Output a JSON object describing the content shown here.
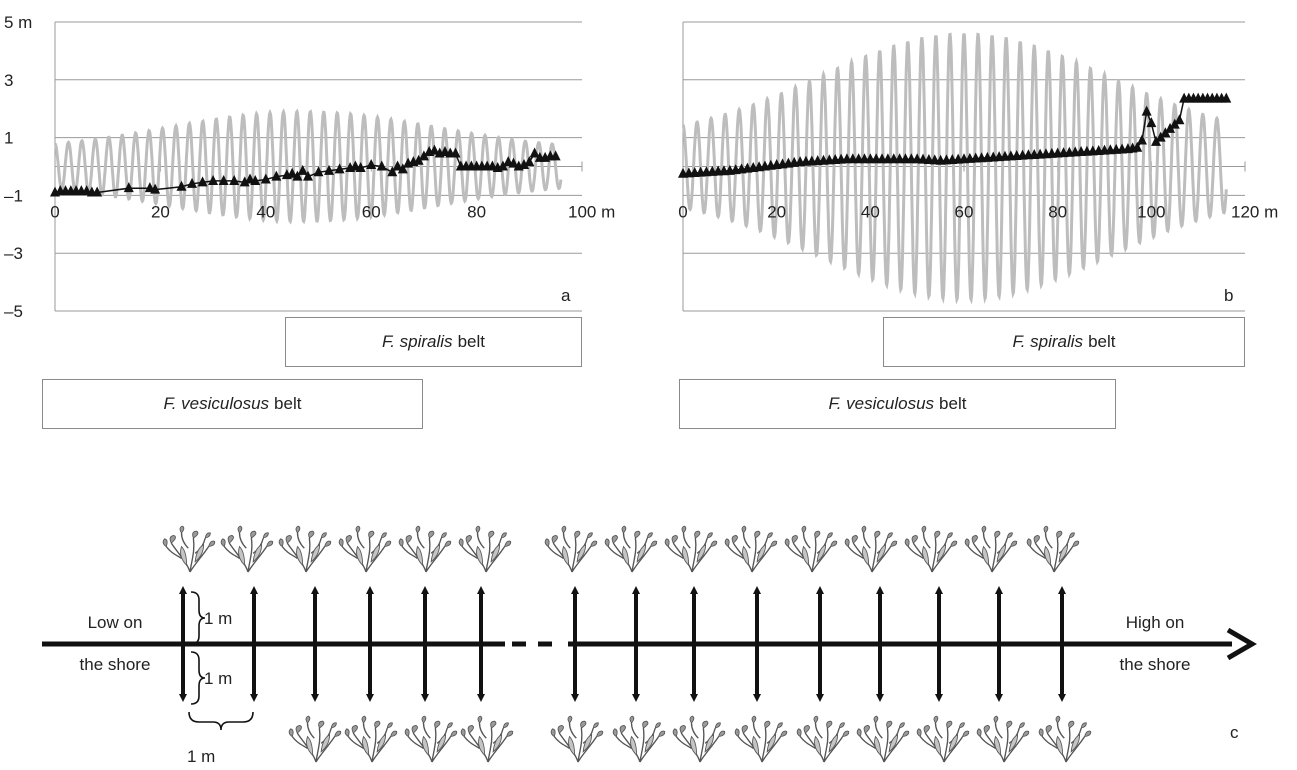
{
  "chart_data": [
    {
      "type": "line",
      "panel_label": "a",
      "y_tick_labels": [
        "5 m",
        "3",
        "1",
        "–1",
        "–3",
        "–5"
      ],
      "y_ticks": [
        5,
        3,
        1,
        -1,
        -3,
        -5
      ],
      "x_tick_labels": [
        "0",
        "20",
        "40",
        "60",
        "80",
        "100 m"
      ],
      "x_ticks": [
        0,
        20,
        40,
        60,
        80,
        100
      ],
      "xlim": [
        0,
        100
      ],
      "ylim": [
        -5,
        5
      ],
      "grid": true,
      "tide_series": {
        "color": "#bdbdbd",
        "period_m": 2.55,
        "amp_min": 0.55,
        "amp_max": 1.9,
        "peak_x": 47
      },
      "profile_series": {
        "color": "#111111",
        "marker": "triangle",
        "points": [
          [
            0,
            -0.9
          ],
          [
            1,
            -0.85
          ],
          [
            2,
            -0.85
          ],
          [
            3,
            -0.85
          ],
          [
            4,
            -0.85
          ],
          [
            5,
            -0.85
          ],
          [
            6,
            -0.85
          ],
          [
            7,
            -0.9
          ],
          [
            8,
            -0.9
          ],
          [
            14,
            -0.75
          ],
          [
            18,
            -0.75
          ],
          [
            19,
            -0.8
          ],
          [
            24,
            -0.7
          ],
          [
            26,
            -0.6
          ],
          [
            28,
            -0.55
          ],
          [
            30,
            -0.5
          ],
          [
            32,
            -0.5
          ],
          [
            34,
            -0.5
          ],
          [
            36,
            -0.55
          ],
          [
            37,
            -0.45
          ],
          [
            38,
            -0.5
          ],
          [
            40,
            -0.45
          ],
          [
            42,
            -0.35
          ],
          [
            44,
            -0.3
          ],
          [
            45,
            -0.25
          ],
          [
            46,
            -0.35
          ],
          [
            47,
            -0.15
          ],
          [
            48,
            -0.35
          ],
          [
            50,
            -0.2
          ],
          [
            52,
            -0.15
          ],
          [
            54,
            -0.1
          ],
          [
            56,
            -0.05
          ],
          [
            57,
            0.0
          ],
          [
            58,
            -0.05
          ],
          [
            60,
            0.05
          ],
          [
            62,
            0.0
          ],
          [
            64,
            -0.2
          ],
          [
            65,
            0.0
          ],
          [
            66,
            -0.1
          ],
          [
            67,
            0.1
          ],
          [
            68,
            0.15
          ],
          [
            69,
            0.2
          ],
          [
            70,
            0.35
          ],
          [
            71,
            0.5
          ],
          [
            72,
            0.55
          ],
          [
            73,
            0.45
          ],
          [
            74,
            0.5
          ],
          [
            75,
            0.45
          ],
          [
            76,
            0.45
          ],
          [
            77,
            0.0
          ],
          [
            78,
            0.0
          ],
          [
            79,
            0.0
          ],
          [
            80,
            0.0
          ],
          [
            81,
            0.0
          ],
          [
            82,
            0.0
          ],
          [
            83,
            0.0
          ],
          [
            84,
            -0.05
          ],
          [
            85,
            0.0
          ],
          [
            86,
            0.15
          ],
          [
            87,
            0.1
          ],
          [
            88,
            0.0
          ],
          [
            89,
            0.05
          ],
          [
            90,
            0.15
          ],
          [
            91,
            0.45
          ],
          [
            92,
            0.3
          ],
          [
            93,
            0.3
          ],
          [
            94,
            0.35
          ],
          [
            95,
            0.35
          ]
        ]
      },
      "belts": [
        {
          "name_italic": "F. spiralis",
          "suffix": "belt",
          "x_from": 46,
          "x_to": 100
        },
        {
          "name_italic": "F. vesiculosus",
          "suffix": "belt",
          "x_from": -1,
          "x_to": 72
        }
      ]
    },
    {
      "type": "line",
      "panel_label": "b",
      "x_tick_labels": [
        "0",
        "20",
        "40",
        "60",
        "80",
        "100",
        "120 m"
      ],
      "x_ticks": [
        0,
        20,
        40,
        60,
        80,
        100,
        120
      ],
      "xlim": [
        0,
        120
      ],
      "ylim": [
        -5,
        5
      ],
      "grid": true,
      "tide_series": {
        "color": "#bdbdbd",
        "period_m": 3.0,
        "amp_min": 0.9,
        "amp_max": 4.6,
        "peak_x": 60
      },
      "profile_series": {
        "color": "#111111",
        "marker": "triangle",
        "points": [
          [
            0,
            -0.25
          ],
          [
            5,
            -0.2
          ],
          [
            10,
            -0.15
          ],
          [
            15,
            -0.05
          ],
          [
            20,
            0.05
          ],
          [
            25,
            0.15
          ],
          [
            30,
            0.2
          ],
          [
            35,
            0.25
          ],
          [
            40,
            0.25
          ],
          [
            45,
            0.25
          ],
          [
            50,
            0.25
          ],
          [
            55,
            0.2
          ],
          [
            60,
            0.25
          ],
          [
            65,
            0.3
          ],
          [
            70,
            0.35
          ],
          [
            75,
            0.4
          ],
          [
            80,
            0.45
          ],
          [
            85,
            0.5
          ],
          [
            90,
            0.55
          ],
          [
            95,
            0.6
          ],
          [
            97,
            0.65
          ],
          [
            98,
            0.9
          ],
          [
            99,
            1.9
          ],
          [
            100,
            1.5
          ],
          [
            101,
            0.85
          ],
          [
            102,
            1.0
          ],
          [
            104,
            1.3
          ],
          [
            106,
            1.6
          ],
          [
            107,
            2.35
          ],
          [
            108,
            2.35
          ],
          [
            110,
            2.35
          ],
          [
            112,
            2.35
          ],
          [
            114,
            2.35
          ],
          [
            116,
            2.35
          ]
        ]
      },
      "belts": [
        {
          "name_italic": "F. spiralis",
          "suffix": "belt",
          "x_from": 52,
          "x_to": 116
        },
        {
          "name_italic": "F. vesiculosus",
          "suffix": "belt",
          "x_from": 0,
          "x_to": 95
        }
      ]
    }
  ],
  "diagram_c": {
    "panel_label": "c",
    "left_label_line1": "Low on",
    "left_label_line2": "the shore",
    "right_label_line1": "High on",
    "right_label_line2": "the shore",
    "spacing_label_up": "1 m",
    "spacing_label_down": "1 m",
    "spacing_label_horizontal": "1 m"
  }
}
